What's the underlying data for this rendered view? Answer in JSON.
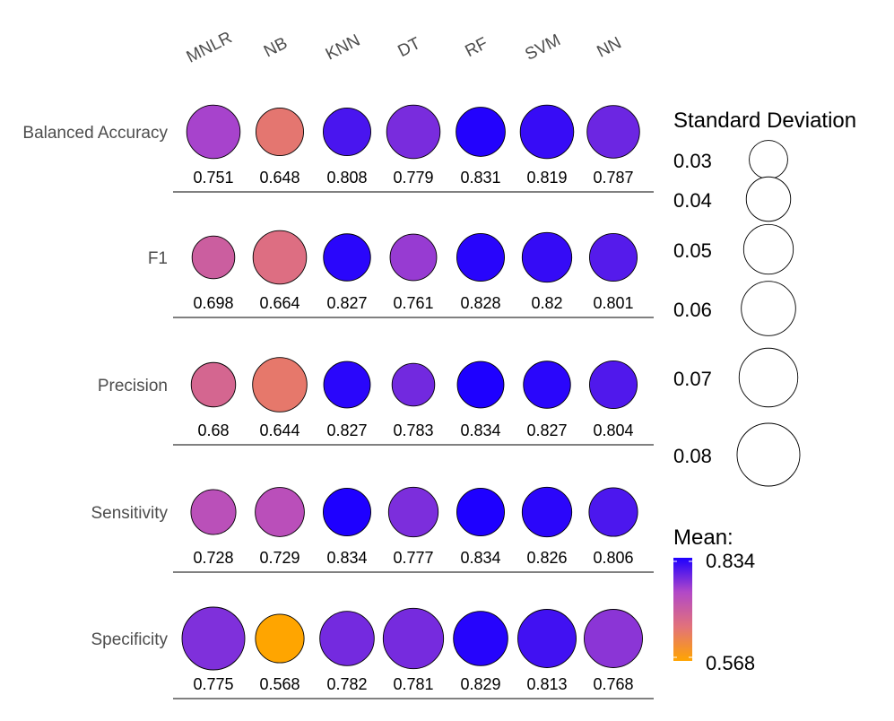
{
  "chart_data": {
    "type": "scatter",
    "categories": [
      "MNLR",
      "NB",
      "KNN",
      "DT",
      "RF",
      "SVM",
      "NN"
    ],
    "metrics": [
      "Balanced Accuracy",
      "F1",
      "Precision",
      "Sensitivity",
      "Specificity"
    ],
    "mean": [
      [
        0.751,
        0.648,
        0.808,
        0.779,
        0.831,
        0.819,
        0.787
      ],
      [
        0.698,
        0.664,
        0.827,
        0.761,
        0.828,
        0.82,
        0.801
      ],
      [
        0.68,
        0.644,
        0.827,
        0.783,
        0.834,
        0.827,
        0.804
      ],
      [
        0.728,
        0.729,
        0.834,
        0.777,
        0.834,
        0.826,
        0.806
      ],
      [
        0.775,
        0.568,
        0.782,
        0.781,
        0.829,
        0.813,
        0.768
      ]
    ],
    "mean_labels": [
      [
        "0.751",
        "0.648",
        "0.808",
        "0.779",
        "0.831",
        "0.819",
        "0.787"
      ],
      [
        "0.698",
        "0.664",
        "0.827",
        "0.761",
        "0.828",
        "0.82",
        "0.801"
      ],
      [
        "0.68",
        "0.644",
        "0.827",
        "0.783",
        "0.834",
        "0.827",
        "0.804"
      ],
      [
        "0.728",
        "0.729",
        "0.834",
        "0.777",
        "0.834",
        "0.826",
        "0.806"
      ],
      [
        "0.775",
        "0.568",
        "0.782",
        "0.781",
        "0.829",
        "0.813",
        "0.768"
      ]
    ],
    "std": [
      [
        0.058,
        0.046,
        0.046,
        0.058,
        0.049,
        0.058,
        0.056
      ],
      [
        0.037,
        0.058,
        0.045,
        0.044,
        0.046,
        0.05,
        0.046
      ],
      [
        0.04,
        0.06,
        0.044,
        0.037,
        0.044,
        0.045,
        0.046
      ],
      [
        0.041,
        0.049,
        0.046,
        0.05,
        0.046,
        0.05,
        0.048
      ],
      [
        0.08,
        0.048,
        0.06,
        0.074,
        0.06,
        0.069,
        0.069
      ]
    ],
    "size_legend": {
      "title": "Standard Deviation",
      "values": [
        0.03,
        0.04,
        0.05,
        0.06,
        0.07,
        0.08
      ],
      "labels": [
        "0.03",
        "0.04",
        "0.05",
        "0.06",
        "0.07",
        "0.08"
      ]
    },
    "color_legend": {
      "title": "Mean:",
      "min": 0.568,
      "max": 0.834,
      "min_label": "0.568",
      "max_label": "0.834"
    },
    "color_scale": {
      "stops": [
        {
          "value": 0.568,
          "color": "#ffa500"
        },
        {
          "value": 0.655,
          "color": "#e2727a"
        },
        {
          "value": 0.745,
          "color": "#b148c8"
        },
        {
          "value": 0.834,
          "color": "#1e00ff"
        }
      ]
    }
  }
}
